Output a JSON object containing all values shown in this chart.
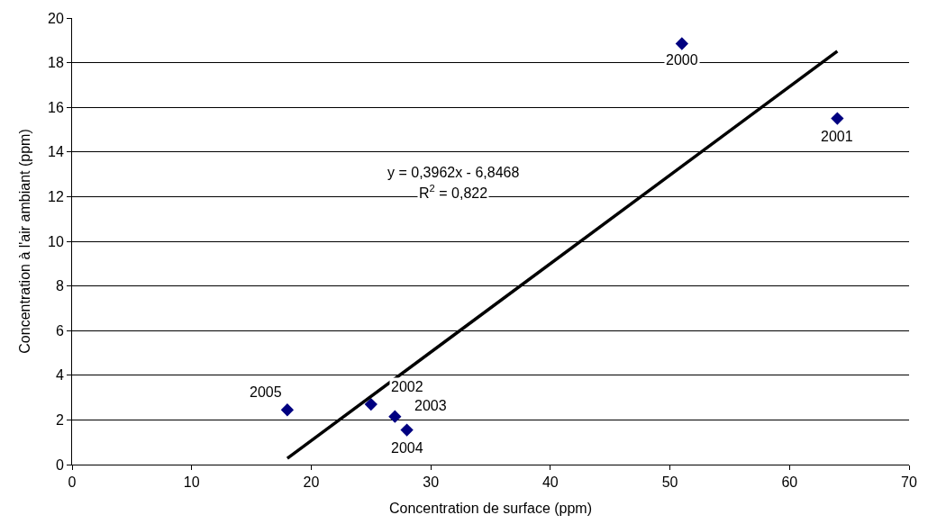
{
  "chart_data": {
    "type": "scatter",
    "xlabel": "Concentration de surface (ppm)",
    "ylabel": "Concentration à l'air ambiant (ppm)",
    "series": [
      {
        "color": "#000080",
        "marker": "diamond",
        "x": [
          51,
          64,
          25,
          27,
          28,
          18
        ],
        "values": [
          18.85,
          15.5,
          2.7,
          2.15,
          1.55,
          2.45
        ]
      },
      {
        "type": "line",
        "color": "#000000",
        "marker": "none",
        "line_style": "solid",
        "x": [
          18,
          64
        ],
        "values": [
          0.28,
          18.51
        ]
      }
    ],
    "annotations": [
      {
        "text": "2000",
        "x": 51,
        "y": 18.85
      },
      {
        "text": "2001",
        "x": 64,
        "y": 15.5
      },
      {
        "text": "2002",
        "x": 25,
        "y": 2.7
      },
      {
        "text": "2003",
        "x": 27,
        "y": 2.15
      },
      {
        "text": "2004",
        "x": 28,
        "y": 1.55
      },
      {
        "text": "2005",
        "x": 18,
        "y": 2.45
      },
      "y = 0,3962x - 6,8468",
      "R$^{2}$ = 0,822"
    ],
    "xlim": [
      0,
      70
    ],
    "xticks": [
      0,
      10,
      20,
      30,
      40,
      50,
      60,
      70
    ],
    "ylim": [
      0,
      20
    ],
    "yticks": [
      0,
      2,
      4,
      6,
      8,
      10,
      12,
      14,
      16,
      18,
      20
    ],
    "grid": "y",
    "legend": false
  }
}
